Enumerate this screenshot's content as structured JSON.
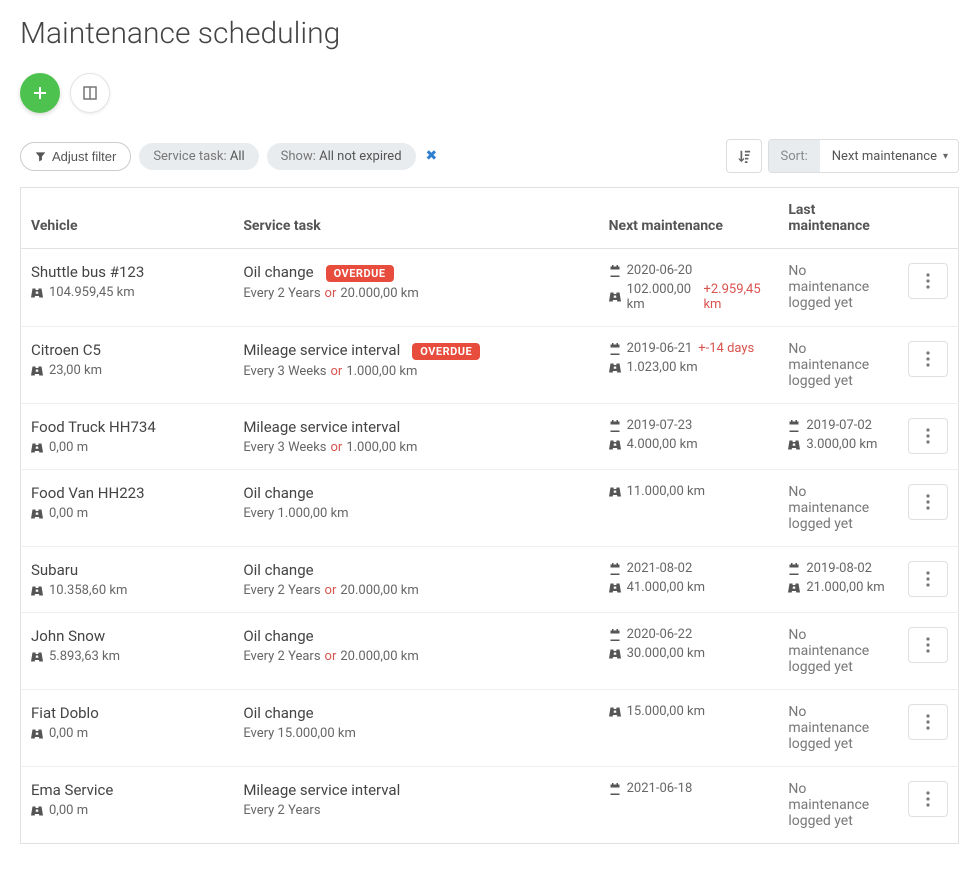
{
  "page_title": "Maintenance scheduling",
  "filter": {
    "adjust_label": "Adjust filter",
    "pills": [
      {
        "label": "Service task:",
        "value": "All"
      },
      {
        "label": "Show:",
        "value": "All not expired"
      }
    ]
  },
  "sort": {
    "caption": "Sort:",
    "value": "Next maintenance"
  },
  "labels": {
    "overdue": "OVERDUE",
    "or": "or",
    "no_maint": "No maintenance logged yet"
  },
  "columns": {
    "vehicle": "Vehicle",
    "task": "Service task",
    "next": "Next maintenance",
    "last": "Last maintenance"
  },
  "rows": [
    {
      "vehicle": "Shuttle bus #123",
      "odometer": "104.959,45 km",
      "task": "Oil change",
      "overdue": true,
      "interval": "Every 2 Years",
      "interval_or": "20.000,00 km",
      "next_date": "2020-06-20",
      "next_km": "102.000,00 km",
      "next_extra": "+2.959,45 km",
      "last_date": "",
      "last_km": "",
      "last_none": true
    },
    {
      "vehicle": "Citroen C5",
      "odometer": "23,00 km",
      "task": "Mileage service interval",
      "overdue": true,
      "interval": "Every 3 Weeks",
      "interval_or": "1.000,00 km",
      "next_date": "2019-06-21",
      "next_date_extra": "+-14 days",
      "next_km": "1.023,00 km",
      "last_date": "",
      "last_km": "",
      "last_none": true
    },
    {
      "vehicle": "Food Truck HH734",
      "odometer": "0,00 m",
      "task": "Mileage service interval",
      "overdue": false,
      "interval": "Every 3 Weeks",
      "interval_or": "1.000,00 km",
      "next_date": "2019-07-23",
      "next_km": "4.000,00 km",
      "last_date": "2019-07-02",
      "last_km": "3.000,00 km",
      "last_none": false
    },
    {
      "vehicle": "Food Van HH223",
      "odometer": "0,00 m",
      "task": "Oil change",
      "overdue": false,
      "interval": "Every 1.000,00 km",
      "interval_or": "",
      "next_date": "",
      "next_km": "11.000,00 km",
      "last_date": "",
      "last_km": "",
      "last_none": true
    },
    {
      "vehicle": "Subaru",
      "odometer": "10.358,60 km",
      "task": "Oil change",
      "overdue": false,
      "interval": "Every 2 Years",
      "interval_or": "20.000,00 km",
      "next_date": "2021-08-02",
      "next_km": "41.000,00 km",
      "last_date": "2019-08-02",
      "last_km": "21.000,00 km",
      "last_none": false
    },
    {
      "vehicle": "John Snow",
      "odometer": "5.893,63 km",
      "task": "Oil change",
      "overdue": false,
      "interval": "Every 2 Years",
      "interval_or": "20.000,00 km",
      "next_date": "2020-06-22",
      "next_km": "30.000,00 km",
      "last_date": "",
      "last_km": "",
      "last_none": true
    },
    {
      "vehicle": "Fiat Doblo",
      "odometer": "0,00 m",
      "task": "Oil change",
      "overdue": false,
      "interval": "Every 15.000,00 km",
      "interval_or": "",
      "next_date": "",
      "next_km": "15.000,00 km",
      "last_date": "",
      "last_km": "",
      "last_none": true
    },
    {
      "vehicle": "Ema Service",
      "odometer": "0,00 m",
      "task": "Mileage service interval",
      "overdue": false,
      "interval": "Every 2 Years",
      "interval_or": "",
      "next_date": "2021-06-18",
      "next_km": "",
      "last_date": "",
      "last_km": "",
      "last_none": true
    }
  ]
}
